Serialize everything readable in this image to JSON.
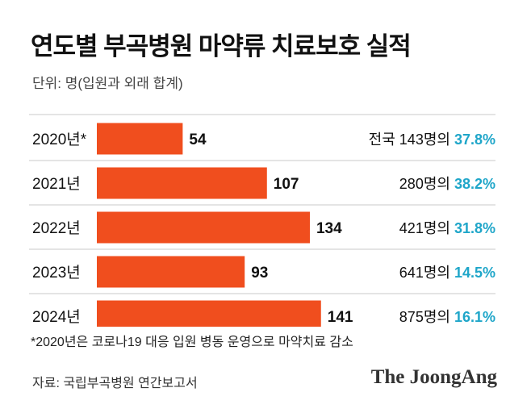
{
  "title": "연도별 부곡병원 마약류 치료보호 실적",
  "unit_label": "단위: 명(입원과 외래 합계)",
  "footnote": "*2020년은 코로나19 대응 입원 병동 운영으로 마약치료 감소",
  "source": "자료: 국립부곡병원 연간보고서",
  "brand": "The JoongAng",
  "colors": {
    "bar": "#f04e1e",
    "percent": "#1fa6c9",
    "divider": "#c8c8c8"
  },
  "chart_data": {
    "type": "bar",
    "orientation": "horizontal",
    "categories": [
      "2020년*",
      "2021년",
      "2022년",
      "2023년",
      "2024년"
    ],
    "values": [
      54,
      107,
      134,
      93,
      141
    ],
    "annotations": [
      {
        "prefix": "전국 143명의 ",
        "percent": "37.8%"
      },
      {
        "prefix": "280명의 ",
        "percent": "38.2%"
      },
      {
        "prefix": "421명의 ",
        "percent": "31.8%"
      },
      {
        "prefix": "641명의 ",
        "percent": "14.5%"
      },
      {
        "prefix": "875명의 ",
        "percent": "16.1%"
      }
    ]
  }
}
